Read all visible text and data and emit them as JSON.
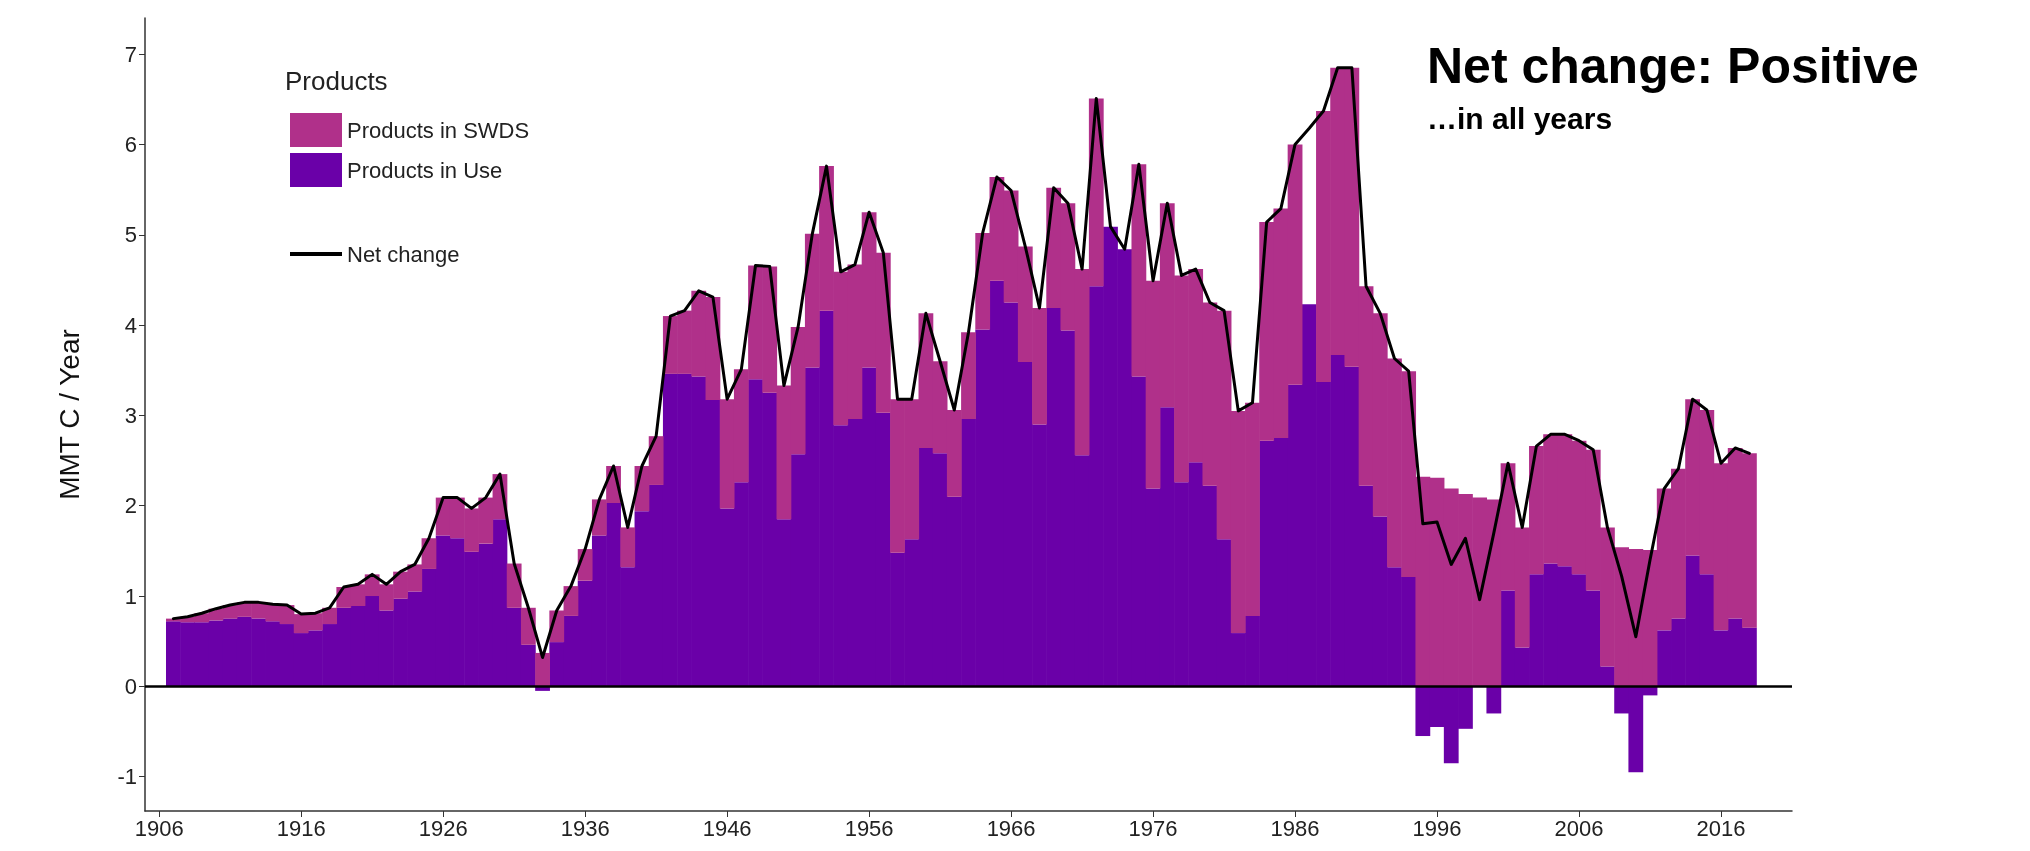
{
  "chart_data": {
    "type": "bar",
    "title": "Net change: Positive",
    "subtitle": "…in all years",
    "ylabel": "MMT C / Year",
    "legend_title": "Products",
    "legend": "top left",
    "stacked": true,
    "grid": false,
    "marker": "none",
    "x": [
      1907,
      1908,
      1909,
      1910,
      1911,
      1912,
      1913,
      1914,
      1915,
      1916,
      1917,
      1918,
      1919,
      1920,
      1921,
      1922,
      1923,
      1924,
      1925,
      1926,
      1927,
      1928,
      1929,
      1930,
      1931,
      1932,
      1933,
      1934,
      1935,
      1936,
      1937,
      1938,
      1939,
      1940,
      1941,
      1942,
      1943,
      1944,
      1945,
      1946,
      1947,
      1948,
      1949,
      1950,
      1951,
      1952,
      1953,
      1954,
      1955,
      1956,
      1957,
      1958,
      1959,
      1960,
      1961,
      1962,
      1963,
      1964,
      1965,
      1966,
      1967,
      1968,
      1969,
      1970,
      1971,
      1972,
      1973,
      1974,
      1975,
      1976,
      1977,
      1978,
      1979,
      1980,
      1981,
      1982,
      1983,
      1984,
      1985,
      1986,
      1987,
      1988,
      1989,
      1990,
      1991,
      1992,
      1993,
      1994,
      1995,
      1996,
      1997,
      1998,
      1999,
      2000,
      2001,
      2002,
      2003,
      2004,
      2005,
      2006,
      2007,
      2008,
      2009,
      2010,
      2011,
      2012,
      2013,
      2014,
      2015,
      2016,
      2017,
      2018
    ],
    "series": [
      {
        "name": "Products in Use",
        "color": "#6a00a8",
        "values": [
          0.72,
          0.71,
          0.71,
          0.73,
          0.75,
          0.77,
          0.75,
          0.72,
          0.69,
          0.59,
          0.62,
          0.69,
          0.87,
          0.89,
          1.0,
          0.84,
          0.97,
          1.05,
          1.3,
          1.67,
          1.64,
          1.49,
          1.58,
          1.85,
          0.87,
          0.46,
          -0.05,
          0.49,
          0.78,
          1.17,
          1.67,
          2.03,
          1.32,
          1.94,
          2.23,
          3.46,
          3.46,
          3.43,
          3.17,
          1.97,
          2.26,
          3.4,
          3.25,
          1.85,
          2.57,
          3.53,
          4.16,
          2.89,
          2.96,
          3.53,
          3.03,
          1.48,
          1.63,
          2.64,
          2.58,
          2.1,
          2.96,
          3.95,
          4.49,
          4.25,
          3.59,
          2.9,
          4.19,
          3.94,
          2.56,
          4.43,
          5.09,
          4.84,
          3.43,
          2.19,
          3.09,
          2.26,
          2.48,
          2.22,
          1.63,
          0.59,
          0.78,
          2.72,
          2.75,
          3.34,
          4.23,
          3.37,
          3.67,
          3.54,
          2.22,
          1.88,
          1.32,
          1.21,
          -0.55,
          -0.45,
          -0.85,
          -0.47,
          0,
          -0.3,
          1.06,
          0.43,
          1.24,
          1.36,
          1.33,
          1.24,
          1.06,
          0.22,
          -0.3,
          -0.95,
          -0.1,
          0.62,
          0.75,
          1.45,
          1.24,
          0.62,
          0.75,
          0.65
        ]
      },
      {
        "name": "Products in SWDS",
        "color": "#b0308a",
        "values": [
          0.03,
          0.06,
          0.1,
          0.13,
          0.15,
          0.16,
          0.18,
          0.19,
          0.21,
          0.21,
          0.19,
          0.18,
          0.23,
          0.24,
          0.24,
          0.29,
          0.3,
          0.3,
          0.34,
          0.42,
          0.45,
          0.48,
          0.51,
          0.5,
          0.49,
          0.41,
          0.37,
          0.35,
          0.33,
          0.35,
          0.4,
          0.41,
          0.44,
          0.5,
          0.54,
          0.64,
          0.7,
          0.95,
          1.14,
          1.21,
          1.25,
          1.26,
          1.4,
          1.48,
          1.41,
          1.48,
          1.6,
          1.7,
          1.71,
          1.72,
          1.77,
          1.7,
          1.55,
          1.49,
          1.02,
          0.96,
          0.96,
          1.07,
          1.15,
          1.24,
          1.28,
          1.29,
          1.33,
          1.41,
          2.06,
          2.08,
          0,
          0,
          2.35,
          2.3,
          2.26,
          2.29,
          2.14,
          2.03,
          2.53,
          2.46,
          2.36,
          2.42,
          2.54,
          2.66,
          null,
          3.0,
          3.18,
          3.31,
          2.21,
          2.25,
          2.31,
          2.28,
          2.32,
          2.31,
          2.19,
          2.13,
          2.09,
          2.07,
          1.41,
          1.33,
          1.42,
          1.43,
          1.46,
          1.48,
          1.56,
          1.54,
          1.54,
          1.52,
          1.51,
          1.57,
          1.66,
          1.73,
          1.82,
          1.85,
          1.89,
          1.93
        ]
      },
      {
        "name": "Net change",
        "type": "line",
        "color": "#000000",
        "line_style": "solid",
        "values": [
          0.75,
          0.77,
          0.81,
          0.86,
          0.9,
          0.93,
          0.93,
          0.91,
          0.9,
          0.8,
          0.81,
          0.87,
          1.1,
          1.13,
          1.24,
          1.13,
          1.27,
          1.35,
          1.64,
          2.09,
          2.09,
          1.97,
          2.09,
          2.35,
          1.36,
          0.87,
          0.32,
          0.84,
          1.11,
          1.52,
          2.07,
          2.44,
          1.76,
          2.44,
          2.77,
          4.1,
          4.16,
          4.38,
          4.31,
          3.18,
          3.51,
          4.66,
          4.65,
          3.33,
          3.98,
          5.01,
          5.76,
          4.59,
          4.67,
          5.25,
          4.8,
          3.18,
          3.18,
          4.13,
          3.6,
          3.06,
          3.92,
          5.02,
          5.64,
          5.49,
          4.87,
          4.19,
          5.52,
          5.35,
          4.62,
          6.51,
          5.09,
          4.84,
          5.78,
          4.49,
          5.35,
          4.55,
          4.62,
          4.25,
          4.16,
          3.05,
          3.14,
          5.14,
          5.29,
          6.0,
          6.18,
          6.37,
          6.85,
          6.85,
          4.43,
          4.13,
          3.63,
          3.49,
          1.8,
          1.82,
          1.35,
          1.64,
          0.96,
          1.7,
          2.47,
          1.76,
          2.66,
          2.79,
          2.79,
          2.72,
          2.62,
          1.76,
          1.22,
          0.55,
          1.4,
          2.19,
          2.41,
          3.18,
          3.06,
          2.47,
          2.64,
          2.58
        ]
      }
    ],
    "xlim": [
      1905,
      2021
    ],
    "xticks": [
      1906,
      1916,
      1926,
      1936,
      1946,
      1956,
      1966,
      1976,
      1986,
      1996,
      2006,
      2016
    ],
    "ylim": [
      -1.38,
      7.4
    ],
    "yticks": [
      -1,
      0,
      1,
      2,
      3,
      4,
      5,
      6,
      7
    ],
    "ref_lines": [
      {
        "axis": "y",
        "value": 0,
        "color": "#000000"
      }
    ]
  }
}
